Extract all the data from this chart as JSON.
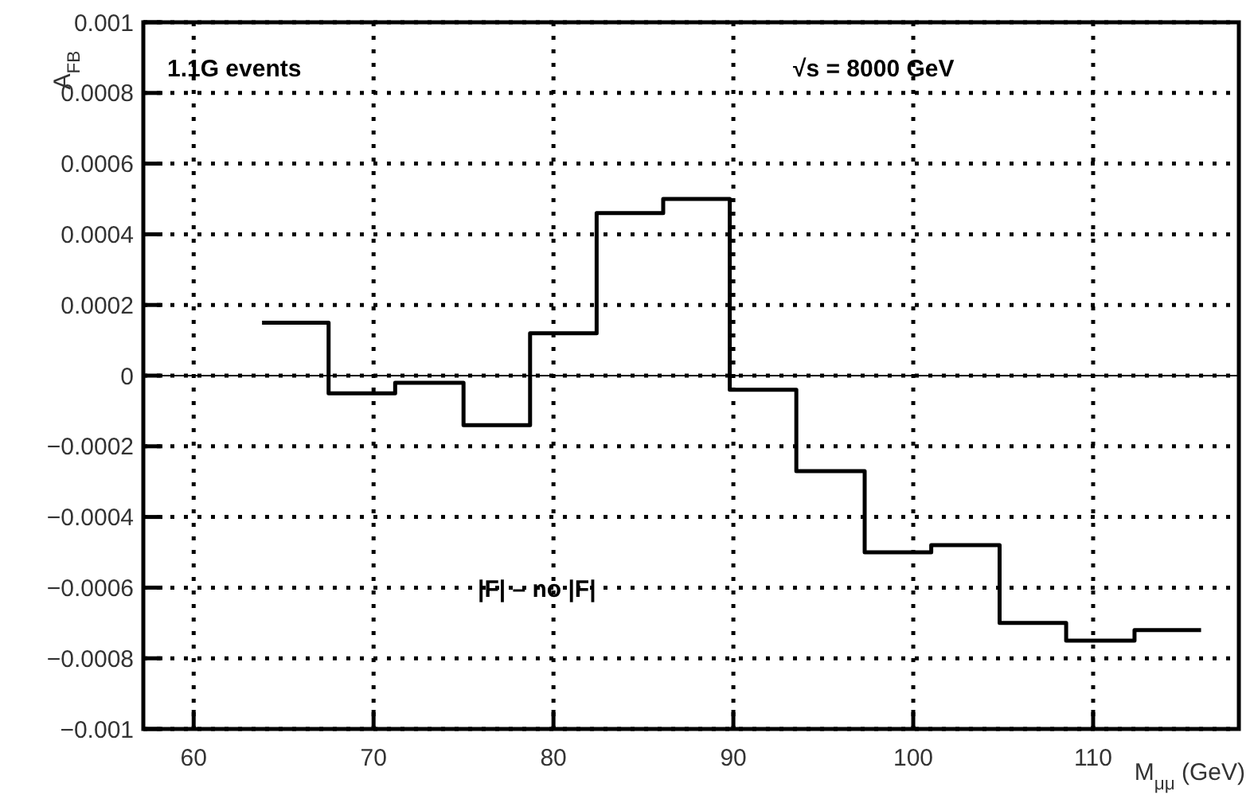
{
  "chart_data": {
    "type": "histogram",
    "xlabel": "M$_{μμ}$ (GeV)",
    "ylabel": "A$_{FB}$",
    "bins": [
      63.8,
      67.5,
      71.2,
      75.0,
      78.7,
      82.4,
      86.1,
      89.8,
      93.5,
      97.3,
      101.0,
      104.8,
      108.5,
      112.3,
      116.0
    ],
    "values": [
      0.00015,
      -5e-05,
      -2e-05,
      -0.00014,
      0.00012,
      0.00046,
      0.0005,
      -4e-05,
      -0.00027,
      -0.0005,
      -0.00048,
      -0.0007,
      -0.00075,
      -0.00072
    ],
    "color": "#000000",
    "xlim": [
      57.2,
      118.1
    ],
    "xticks": [
      60,
      70,
      80,
      90,
      100,
      110
    ],
    "ylim": [
      -0.001,
      0.001
    ],
    "yticks": [
      {
        "value": -0.001,
        "label": "−0.001"
      },
      {
        "value": -0.0008,
        "label": "−0.0008"
      },
      {
        "value": -0.0006,
        "label": "−0.0006"
      },
      {
        "value": -0.0004,
        "label": "−0.0004"
      },
      {
        "value": -0.0002,
        "label": "−0.0002"
      },
      0,
      0.0002,
      0.0004,
      0.0006,
      0.0008,
      0.001
    ],
    "grid": true,
    "ref_lines": [
      {
        "axis": "y",
        "value": 0
      }
    ],
    "annotations": [
      "1.1G events",
      "√s = 8000 GeV",
      "|F| – no |F|"
    ]
  }
}
